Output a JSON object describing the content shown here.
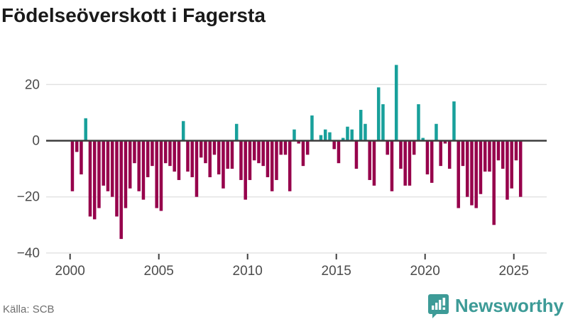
{
  "header": {
    "title": "Födelseöverskott i Fagersta"
  },
  "footer": {
    "source": "Källa: SCB",
    "brand": "Newsworthy",
    "brand_icon": "newsworthy-pin-barchart-icon"
  },
  "colors": {
    "positive_bar": "#18a09b",
    "negative_bar": "#96004b",
    "title_text": "#1a1a1a",
    "axis_text": "#4b4b4b",
    "grid_line": "#e3e3e3",
    "zero_line": "#3d3d3d",
    "tick_mark": "#3f3f3f",
    "source_text": "#6e6e6e",
    "brand_teal": "#3d9b97",
    "background": "#ffffff"
  },
  "chart_data": {
    "type": "bar",
    "title": "Födelseöverskott i Fagersta",
    "period": "quarterly",
    "x_start": "2000-Q1",
    "x_end": "2025-Q2",
    "values": [
      -18,
      -4,
      -12,
      8,
      -27,
      -28,
      -24,
      -16,
      -18,
      -20,
      -27,
      -35,
      -24,
      -17,
      -8,
      -18,
      -21,
      -13,
      -9,
      -24,
      -25,
      -8,
      -9,
      -11,
      -14,
      7,
      -11,
      -13,
      -20,
      -6,
      -8,
      -13,
      -5,
      -12,
      -17,
      -10,
      -10,
      6,
      -14,
      -21,
      -14,
      -7,
      -8,
      -9,
      -13,
      -18,
      -14,
      -5,
      -5,
      -18,
      4,
      -1,
      -9,
      -5,
      9,
      0,
      2,
      4,
      3,
      -3,
      -8,
      1,
      5,
      4,
      -10,
      11,
      6,
      -14,
      -16,
      19,
      13,
      -5,
      -18,
      27,
      -10,
      -16,
      -16,
      -5,
      13,
      1,
      -12,
      -15,
      6,
      -9,
      -1,
      -10,
      14,
      -24,
      -9,
      -20,
      -23,
      -24,
      -19,
      -11,
      -11,
      -30,
      -7,
      -10,
      -21,
      -17,
      -7,
      -20
    ],
    "xtick_years": [
      2000,
      2005,
      2010,
      2015,
      2020,
      2025
    ],
    "xtick_labels": [
      "2000",
      "2005",
      "2010",
      "2015",
      "2020",
      "2025"
    ],
    "ytick_values": [
      20,
      0,
      -20,
      -40
    ],
    "ytick_labels": [
      "20",
      "0",
      "−20",
      "−40"
    ],
    "ylim": [
      -42,
      29
    ],
    "grid": "horizontal",
    "legend": "none",
    "xlabel": "",
    "ylabel": ""
  }
}
